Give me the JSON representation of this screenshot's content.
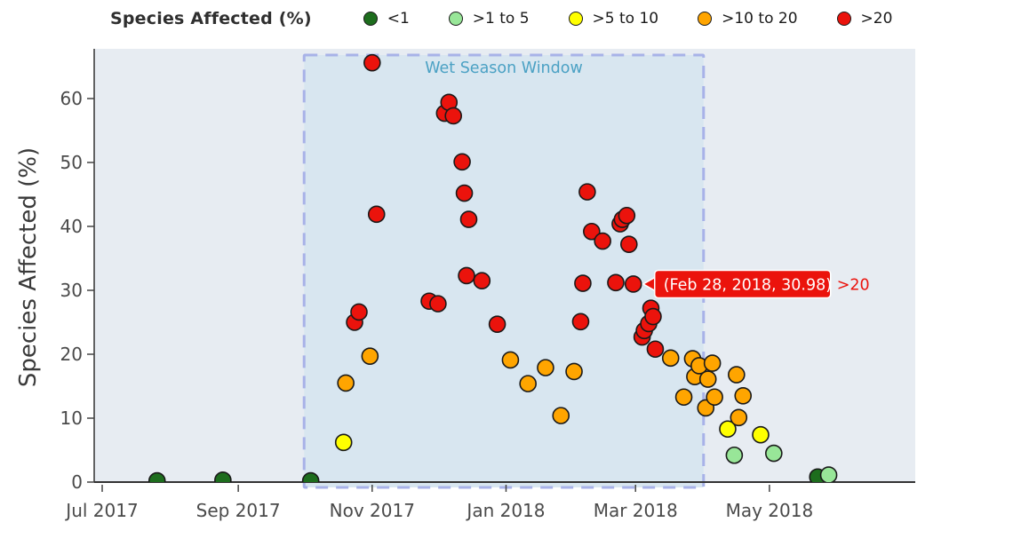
{
  "page": {
    "background": "#ffffff",
    "plot_background": "#e7ecf2"
  },
  "legend": {
    "title": "Species Affected (%)",
    "items": [
      {
        "label": "<1",
        "color": "#1d6d1d"
      },
      {
        "label": ">1 to 5",
        "color": "#98e698"
      },
      {
        "label": ">5 to 10",
        "color": "#ffff00"
      },
      {
        "label": ">10 to 20",
        "color": "#ffa500"
      },
      {
        "label": ">20",
        "color": "#eb130c"
      }
    ]
  },
  "y_axis": {
    "title": "Species Affected (%)",
    "ticks": [
      0,
      10,
      20,
      30,
      40,
      50,
      60
    ],
    "range": [
      0,
      67.5
    ]
  },
  "x_axis": {
    "ticks": [
      {
        "date": "2017-07-01",
        "label": "Jul 2017"
      },
      {
        "date": "2017-09-01",
        "label": "Sep 2017"
      },
      {
        "date": "2017-11-01",
        "label": "Nov 2017"
      },
      {
        "date": "2018-01-01",
        "label": "Jan 2018"
      },
      {
        "date": "2018-03-01",
        "label": "Mar 2018"
      },
      {
        "date": "2018-05-01",
        "label": "May 2018"
      }
    ]
  },
  "annotation": {
    "label": "Wet Season Window",
    "start": "2017-10-01",
    "end": "2018-04-01",
    "fill": "#d8e6f0",
    "border_color": "#a8b2e8",
    "label_color": "#4ba1c4"
  },
  "tooltip": {
    "text": "(Feb 28, 2018, 30.98)",
    "category_label": ">20",
    "date": "2018-02-28",
    "value": 30.98,
    "color": "#eb130c"
  },
  "chart_data": {
    "type": "scatter",
    "x_unit": "date",
    "title": "",
    "xlabel": "",
    "ylabel": "Species Affected (%)",
    "grid": false,
    "legend_position": "top",
    "series": [
      {
        "name": "<1",
        "color": "#1d6d1d",
        "points": [
          {
            "date": "2017-07-26",
            "value": 0.2
          },
          {
            "date": "2017-08-25",
            "value": 0.3
          },
          {
            "date": "2017-10-04",
            "value": 0.2
          },
          {
            "date": "2018-05-23",
            "value": 0.8
          }
        ]
      },
      {
        "name": ">1 to 5",
        "color": "#98e698",
        "points": [
          {
            "date": "2018-04-15",
            "value": 4.2
          },
          {
            "date": "2018-05-03",
            "value": 4.5
          },
          {
            "date": "2018-05-28",
            "value": 1.1
          }
        ]
      },
      {
        "name": ">5 to 10",
        "color": "#ffff00",
        "points": [
          {
            "date": "2017-10-19",
            "value": 6.2
          },
          {
            "date": "2018-04-12",
            "value": 8.3
          },
          {
            "date": "2018-04-27",
            "value": 7.4
          }
        ]
      },
      {
        "name": ">10 to 20",
        "color": "#ffa500",
        "points": [
          {
            "date": "2017-10-20",
            "value": 15.5
          },
          {
            "date": "2017-10-31",
            "value": 19.7
          },
          {
            "date": "2018-01-03",
            "value": 19.1
          },
          {
            "date": "2018-01-11",
            "value": 15.4
          },
          {
            "date": "2018-01-19",
            "value": 17.9
          },
          {
            "date": "2018-01-26",
            "value": 10.4
          },
          {
            "date": "2018-02-01",
            "value": 17.3
          },
          {
            "date": "2018-03-17",
            "value": 19.4
          },
          {
            "date": "2018-03-23",
            "value": 13.3
          },
          {
            "date": "2018-03-27",
            "value": 19.3
          },
          {
            "date": "2018-03-28",
            "value": 16.5
          },
          {
            "date": "2018-03-30",
            "value": 18.2
          },
          {
            "date": "2018-04-02",
            "value": 11.6
          },
          {
            "date": "2018-04-03",
            "value": 16.1
          },
          {
            "date": "2018-04-05",
            "value": 18.6
          },
          {
            "date": "2018-04-06",
            "value": 13.3
          },
          {
            "date": "2018-04-16",
            "value": 16.8
          },
          {
            "date": "2018-04-17",
            "value": 10.1
          },
          {
            "date": "2018-04-19",
            "value": 13.5
          }
        ]
      },
      {
        "name": ">20",
        "color": "#eb130c",
        "points": [
          {
            "date": "2017-10-24",
            "value": 25.0
          },
          {
            "date": "2017-10-26",
            "value": 26.6
          },
          {
            "date": "2017-11-01",
            "value": 65.6
          },
          {
            "date": "2017-11-03",
            "value": 41.9
          },
          {
            "date": "2017-11-27",
            "value": 28.3
          },
          {
            "date": "2017-12-01",
            "value": 27.9
          },
          {
            "date": "2017-12-04",
            "value": 57.7
          },
          {
            "date": "2017-12-06",
            "value": 59.4
          },
          {
            "date": "2017-12-08",
            "value": 57.3
          },
          {
            "date": "2017-12-12",
            "value": 50.1
          },
          {
            "date": "2017-12-13",
            "value": 45.2
          },
          {
            "date": "2017-12-14",
            "value": 32.3
          },
          {
            "date": "2017-12-15",
            "value": 41.1
          },
          {
            "date": "2017-12-21",
            "value": 31.5
          },
          {
            "date": "2017-12-28",
            "value": 24.7
          },
          {
            "date": "2018-02-04",
            "value": 25.1
          },
          {
            "date": "2018-02-05",
            "value": 31.1
          },
          {
            "date": "2018-02-07",
            "value": 45.4
          },
          {
            "date": "2018-02-09",
            "value": 39.2
          },
          {
            "date": "2018-02-14",
            "value": 37.7
          },
          {
            "date": "2018-02-20",
            "value": 31.2
          },
          {
            "date": "2018-02-22",
            "value": 40.4
          },
          {
            "date": "2018-02-23",
            "value": 41.1
          },
          {
            "date": "2018-02-25",
            "value": 41.7
          },
          {
            "date": "2018-02-26",
            "value": 37.2
          },
          {
            "date": "2018-02-28",
            "value": 30.98
          },
          {
            "date": "2018-03-04",
            "value": 22.7
          },
          {
            "date": "2018-03-05",
            "value": 23.7
          },
          {
            "date": "2018-03-07",
            "value": 24.8
          },
          {
            "date": "2018-03-08",
            "value": 27.2
          },
          {
            "date": "2018-03-09",
            "value": 25.9
          },
          {
            "date": "2018-03-10",
            "value": 20.8
          }
        ]
      }
    ]
  }
}
